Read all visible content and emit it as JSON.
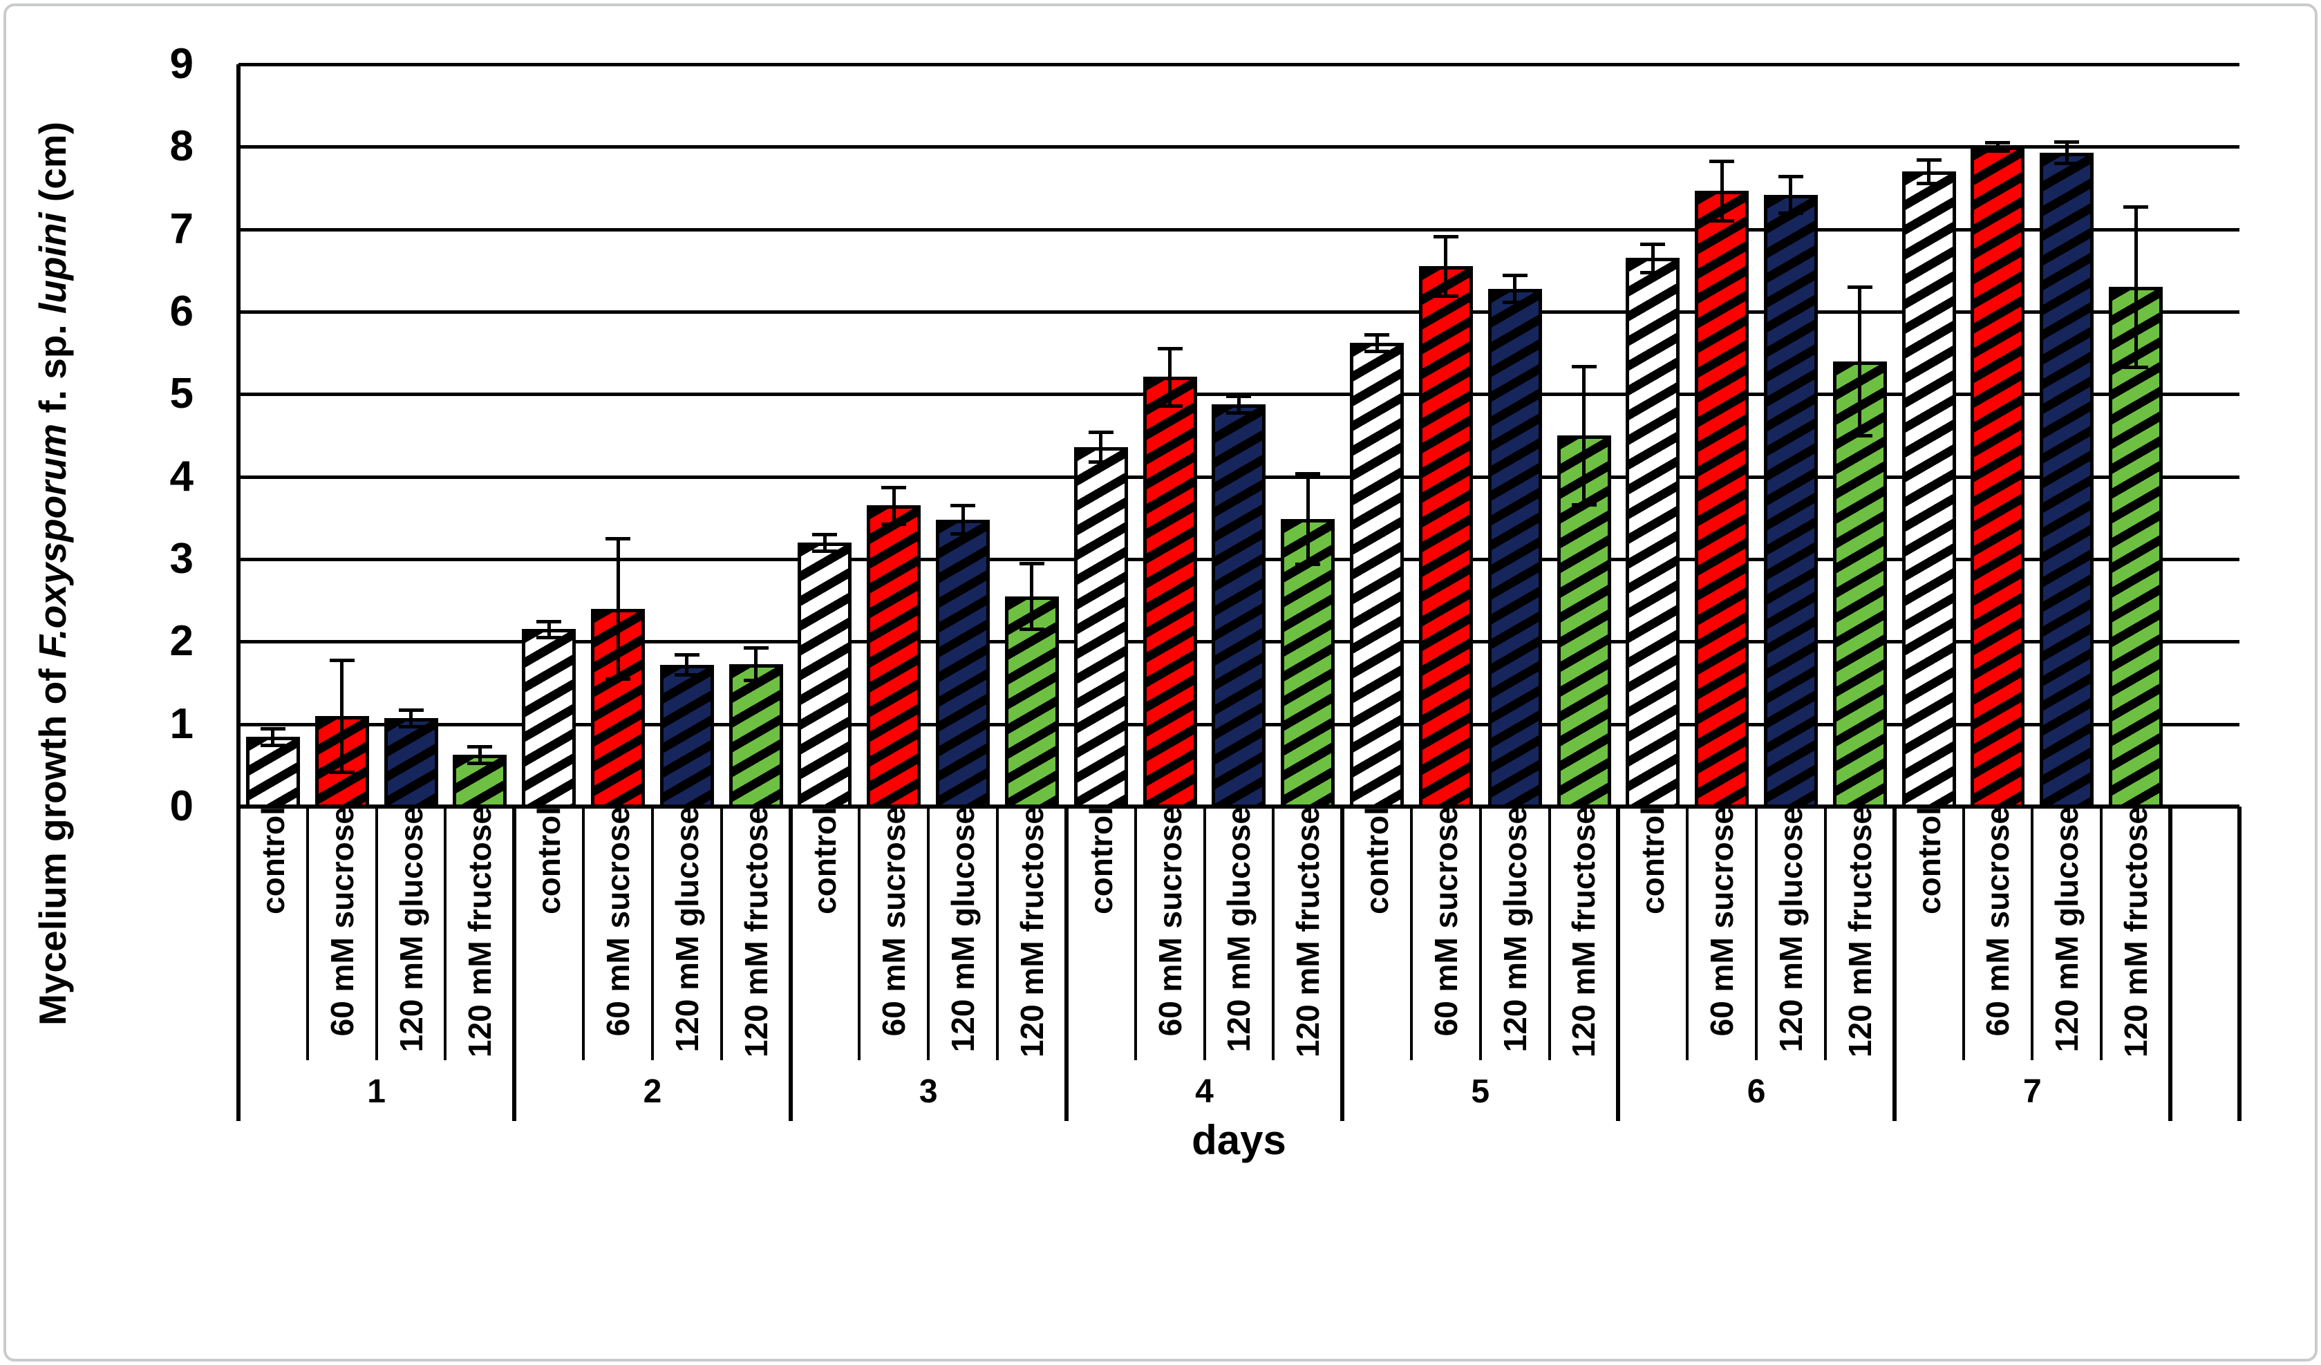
{
  "figure": {
    "background": "#ffffff",
    "border_color": "#c9cbcd"
  },
  "chart_data": {
    "type": "bar",
    "title": "",
    "ylabel": "Mycelium growth of F.oxysporum f. sp. lupini (cm)",
    "ylabel_parts": [
      {
        "text": "Mycelium growth of ",
        "italic": false
      },
      {
        "text": "F.oxysporum",
        "italic": true
      },
      {
        "text": " f. sp. ",
        "italic": false
      },
      {
        "text": "lupini",
        "italic": true
      },
      {
        "text": " (cm)",
        "italic": false
      }
    ],
    "xlabel": "days",
    "ylim": [
      0,
      9
    ],
    "yticks": [
      "0",
      "1",
      "2",
      "3",
      "4",
      "5",
      "6",
      "7",
      "8",
      "9"
    ],
    "grid": "horizontal gridlines at every 1 cm, black",
    "legend_position": "none (treatment name written under every bar)",
    "bar_style": "black diagonal hatch stripes over solid fill, thick black outline, error bars with caps",
    "categories": [
      "1",
      "2",
      "3",
      "4",
      "5",
      "6",
      "7"
    ],
    "series": [
      {
        "name": "control",
        "fill": "#ffffff",
        "hatch_color": "#000000",
        "values": [
          0.85,
          2.15,
          3.2,
          4.36,
          5.62,
          6.65,
          7.7
        ],
        "errors": [
          0.1,
          0.1,
          0.1,
          0.18,
          0.1,
          0.17,
          0.14
        ]
      },
      {
        "name": "60 mM sucrose",
        "fill": "#fe0000",
        "hatch_color": "#000000",
        "values": [
          1.1,
          2.4,
          3.65,
          5.21,
          6.55,
          7.47,
          8.0
        ],
        "errors": [
          0.68,
          0.85,
          0.22,
          0.35,
          0.36,
          0.36,
          0.05
        ]
      },
      {
        "name": "120 mM glucose",
        "fill": "#16265c",
        "hatch_color": "#000000",
        "values": [
          1.07,
          1.72,
          3.48,
          4.88,
          6.28,
          7.42,
          7.93
        ],
        "errors": [
          0.1,
          0.12,
          0.17,
          0.1,
          0.16,
          0.22,
          0.13
        ]
      },
      {
        "name": "120 mM fructose",
        "fill": "#6ec042",
        "hatch_color": "#000000",
        "values": [
          0.63,
          1.73,
          2.55,
          3.49,
          4.5,
          5.4,
          6.3
        ],
        "errors": [
          0.1,
          0.2,
          0.4,
          0.55,
          0.84,
          0.9,
          0.97
        ]
      }
    ]
  }
}
